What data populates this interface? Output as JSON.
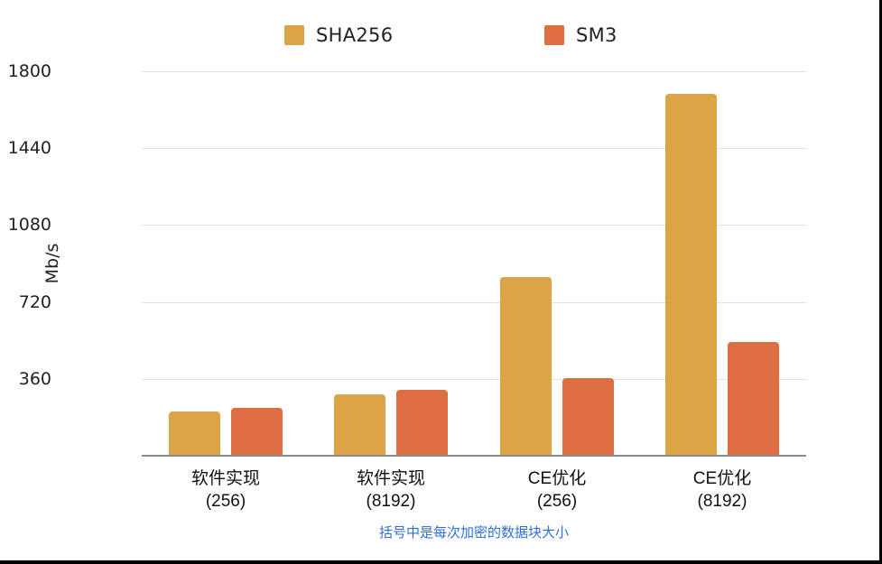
{
  "chart_data": {
    "type": "bar",
    "title": "",
    "xlabel": "括号中是每次加密的数据块大小",
    "ylabel": "Mb/s",
    "ylim": [
      0,
      1800
    ],
    "yticks": [
      360,
      720,
      1080,
      1440,
      1800
    ],
    "grid": true,
    "legend_position": "top",
    "categories": [
      "软件实现 (256)",
      "软件实现 (8192)",
      "CE优化 (256)",
      "CE优化 (8192)"
    ],
    "series": [
      {
        "name": "SHA256",
        "color": "#DBA446",
        "values": [
          207,
          287,
          837,
          1694
        ]
      },
      {
        "name": "SM3",
        "color": "#DE6D42",
        "values": [
          224,
          308,
          363,
          532
        ]
      }
    ]
  },
  "legend": {
    "items": [
      {
        "label": "SHA256",
        "color": "#DBA446"
      },
      {
        "label": "SM3",
        "color": "#DE6D42"
      }
    ]
  },
  "axis": {
    "y_label": "Mb/s",
    "y_ticks": [
      "360",
      "720",
      "1080",
      "1440",
      "1800"
    ]
  },
  "x_categories": [
    {
      "line1": "软件实现",
      "line2": "(256)"
    },
    {
      "line1": "软件实现",
      "line2": "(8192)"
    },
    {
      "line1": "CE优化",
      "line2": "(256)"
    },
    {
      "line1": "CE优化",
      "line2": "(8192)"
    }
  ],
  "footnote": "括号中是每次加密的数据块大小"
}
